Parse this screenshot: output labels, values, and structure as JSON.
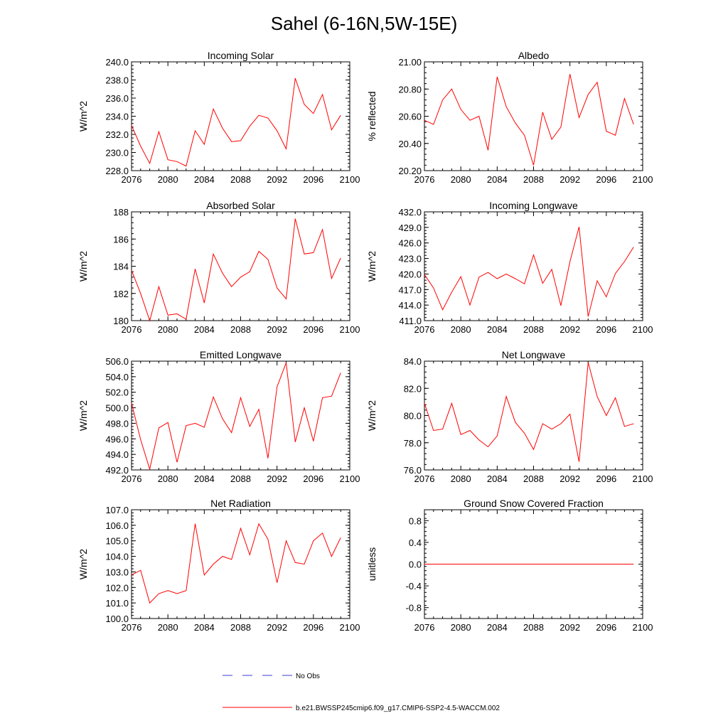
{
  "figure_title": "Sahel (6-16N,5W-15E)",
  "series_color": "#ff0000",
  "obs_color": "#3b3bd6",
  "legend": {
    "obs_label": "No Obs",
    "model_label": "b.e21.BWSSP245cmip6.f09_g17.CMIP6-SSP2-4.5-WACCM.002"
  },
  "chart_data": [
    {
      "type": "line",
      "title": "Incoming Solar",
      "ylabel": "W/m^2",
      "xlim": [
        2076,
        2100
      ],
      "ylim": [
        228,
        240
      ],
      "xticks": [
        "2076",
        "2080",
        "2084",
        "2088",
        "2092",
        "2096",
        "2100"
      ],
      "yticks": [
        "228.0",
        "230.0",
        "232.0",
        "234.0",
        "236.0",
        "238.0",
        "240.0"
      ],
      "x": [
        2076,
        2077,
        2078,
        2079,
        2080,
        2081,
        2082,
        2083,
        2084,
        2085,
        2086,
        2087,
        2088,
        2089,
        2090,
        2091,
        2092,
        2093,
        2094,
        2095,
        2096,
        2097,
        2098,
        2099
      ],
      "values": [
        233.0,
        230.7,
        228.8,
        232.3,
        229.2,
        229.0,
        228.5,
        232.4,
        230.9,
        234.8,
        232.7,
        231.2,
        231.3,
        232.9,
        234.1,
        233.8,
        232.4,
        230.4,
        238.2,
        235.3,
        234.3,
        236.4,
        232.5,
        234.1
      ]
    },
    {
      "type": "line",
      "title": "Albedo",
      "ylabel": "% reflected",
      "xlim": [
        2076,
        2100
      ],
      "ylim": [
        20.2,
        21.0
      ],
      "xticks": [
        "2076",
        "2080",
        "2084",
        "2088",
        "2092",
        "2096",
        "2100"
      ],
      "yticks": [
        "20.20",
        "20.40",
        "20.60",
        "20.80",
        "21.00"
      ],
      "x": [
        2076,
        2077,
        2078,
        2079,
        2080,
        2081,
        2082,
        2083,
        2084,
        2085,
        2086,
        2087,
        2088,
        2089,
        2090,
        2091,
        2092,
        2093,
        2094,
        2095,
        2096,
        2097,
        2098,
        2099
      ],
      "values": [
        20.57,
        20.54,
        20.72,
        20.8,
        20.65,
        20.57,
        20.6,
        20.35,
        20.89,
        20.67,
        20.55,
        20.46,
        20.24,
        20.63,
        20.43,
        20.52,
        20.91,
        20.59,
        20.76,
        20.85,
        20.49,
        20.46,
        20.73,
        20.54
      ]
    },
    {
      "type": "line",
      "title": "Absorbed Solar",
      "ylabel": "W/m^2",
      "xlim": [
        2076,
        2100
      ],
      "ylim": [
        180,
        188
      ],
      "xticks": [
        "2076",
        "2080",
        "2084",
        "2088",
        "2092",
        "2096",
        "2100"
      ],
      "yticks": [
        "180",
        "182",
        "184",
        "186",
        "188"
      ],
      "x": [
        2076,
        2077,
        2078,
        2079,
        2080,
        2081,
        2082,
        2083,
        2084,
        2085,
        2086,
        2087,
        2088,
        2089,
        2090,
        2091,
        2092,
        2093,
        2094,
        2095,
        2096,
        2097,
        2098,
        2099
      ],
      "values": [
        183.7,
        182.0,
        180.0,
        182.5,
        180.4,
        180.5,
        180.1,
        183.8,
        181.3,
        184.9,
        183.5,
        182.5,
        183.2,
        183.6,
        185.1,
        184.5,
        182.4,
        181.6,
        187.5,
        184.9,
        185.0,
        186.7,
        183.1,
        184.6
      ]
    },
    {
      "type": "line",
      "title": "Incoming Longwave",
      "ylabel": "W/m^2",
      "xlim": [
        2076,
        2100
      ],
      "ylim": [
        411,
        432
      ],
      "xticks": [
        "2076",
        "2080",
        "2084",
        "2088",
        "2092",
        "2096",
        "2100"
      ],
      "yticks": [
        "411.0",
        "414.0",
        "417.0",
        "420.0",
        "423.0",
        "426.0",
        "429.0",
        "432.0"
      ],
      "x": [
        2076,
        2077,
        2078,
        2079,
        2080,
        2081,
        2082,
        2083,
        2084,
        2085,
        2086,
        2087,
        2088,
        2089,
        2090,
        2091,
        2092,
        2093,
        2094,
        2095,
        2096,
        2097,
        2098,
        2099
      ],
      "values": [
        419.9,
        417.3,
        413.1,
        416.5,
        419.5,
        414.0,
        419.4,
        420.3,
        419.1,
        420.0,
        419.1,
        418.1,
        423.7,
        418.2,
        420.9,
        413.9,
        422.4,
        429.1,
        411.8,
        418.7,
        415.6,
        420.1,
        422.4,
        425.2
      ]
    },
    {
      "type": "line",
      "title": "Emitted Longwave",
      "ylabel": "W/m^2",
      "xlim": [
        2076,
        2100
      ],
      "ylim": [
        492,
        506
      ],
      "xticks": [
        "2076",
        "2080",
        "2084",
        "2088",
        "2092",
        "2096",
        "2100"
      ],
      "yticks": [
        "492.0",
        "494.0",
        "496.0",
        "498.0",
        "500.0",
        "502.0",
        "504.0",
        "506.0"
      ],
      "x": [
        2076,
        2077,
        2078,
        2079,
        2080,
        2081,
        2082,
        2083,
        2084,
        2085,
        2086,
        2087,
        2088,
        2089,
        2090,
        2091,
        2092,
        2093,
        2094,
        2095,
        2096,
        2097,
        2098,
        2099
      ],
      "values": [
        500.6,
        495.9,
        492.1,
        497.4,
        498.1,
        493.0,
        497.7,
        498.0,
        497.5,
        501.4,
        498.6,
        496.8,
        501.3,
        497.6,
        499.8,
        493.5,
        502.7,
        505.8,
        495.6,
        500.0,
        495.7,
        501.3,
        501.5,
        504.5
      ]
    },
    {
      "type": "line",
      "title": "Net Longwave",
      "ylabel": "W/m^2",
      "xlim": [
        2076,
        2100
      ],
      "ylim": [
        76,
        84
      ],
      "xticks": [
        "2076",
        "2080",
        "2084",
        "2088",
        "2092",
        "2096",
        "2100"
      ],
      "yticks": [
        "76.0",
        "78.0",
        "80.0",
        "82.0",
        "84.0"
      ],
      "x": [
        2076,
        2077,
        2078,
        2079,
        2080,
        2081,
        2082,
        2083,
        2084,
        2085,
        2086,
        2087,
        2088,
        2089,
        2090,
        2091,
        2092,
        2093,
        2094,
        2095,
        2096,
        2097,
        2098,
        2099
      ],
      "values": [
        80.9,
        78.9,
        79.0,
        80.9,
        78.6,
        78.9,
        78.2,
        77.7,
        78.5,
        81.4,
        79.5,
        78.7,
        77.5,
        79.4,
        79.0,
        79.4,
        80.1,
        76.6,
        83.9,
        81.4,
        80.0,
        81.3,
        79.2,
        79.4
      ]
    },
    {
      "type": "line",
      "title": "Net Radiation",
      "ylabel": "W/m^2",
      "xlim": [
        2076,
        2100
      ],
      "ylim": [
        100,
        107
      ],
      "xticks": [
        "2076",
        "2080",
        "2084",
        "2088",
        "2092",
        "2096",
        "2100"
      ],
      "yticks": [
        "100.0",
        "101.0",
        "102.0",
        "103.0",
        "104.0",
        "105.0",
        "106.0",
        "107.0"
      ],
      "x": [
        2076,
        2077,
        2078,
        2079,
        2080,
        2081,
        2082,
        2083,
        2084,
        2085,
        2086,
        2087,
        2088,
        2089,
        2090,
        2091,
        2092,
        2093,
        2094,
        2095,
        2096,
        2097,
        2098,
        2099
      ],
      "values": [
        102.8,
        103.1,
        101.0,
        101.6,
        101.8,
        101.6,
        101.8,
        106.1,
        102.8,
        103.5,
        104.0,
        103.8,
        105.8,
        104.1,
        106.1,
        105.1,
        102.3,
        105.0,
        103.6,
        103.5,
        105.0,
        105.5,
        104.0,
        105.2
      ]
    },
    {
      "type": "line",
      "title": "Ground Snow Covered Fraction",
      "ylabel": "unitless",
      "xlim": [
        2076,
        2100
      ],
      "ylim": [
        -1,
        1
      ],
      "xticks": [
        "2076",
        "2080",
        "2084",
        "2088",
        "2092",
        "2096",
        "2100"
      ],
      "yticks": [
        "-0.8",
        "-0.4",
        "0.0",
        "0.4",
        "0.8"
      ],
      "x": [
        2076,
        2077,
        2078,
        2079,
        2080,
        2081,
        2082,
        2083,
        2084,
        2085,
        2086,
        2087,
        2088,
        2089,
        2090,
        2091,
        2092,
        2093,
        2094,
        2095,
        2096,
        2097,
        2098,
        2099
      ],
      "values": [
        0,
        0,
        0,
        0,
        0,
        0,
        0,
        0,
        0,
        0,
        0,
        0,
        0,
        0,
        0,
        0,
        0,
        0,
        0,
        0,
        0,
        0,
        0,
        0
      ]
    }
  ]
}
